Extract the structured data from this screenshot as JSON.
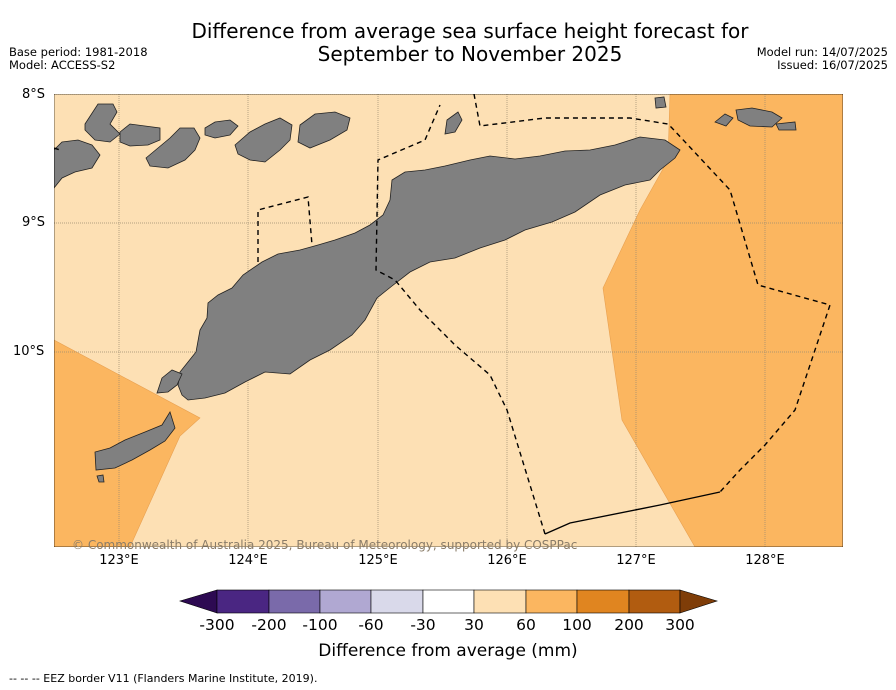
{
  "header": {
    "title_line1": "Difference from average sea surface height forecast for",
    "title_line2": "September to November 2025",
    "base_period": "Base period: 1981-2018",
    "model": "Model: ACCESS-S2",
    "model_run": "Model run: 14/07/2025",
    "issued": "Issued: 16/07/2025"
  },
  "map": {
    "lat_labels": [
      "8°S",
      "9°S",
      "10°S"
    ],
    "lon_labels": [
      "123°E",
      "124°E",
      "125°E",
      "126°E",
      "127°E",
      "128°E"
    ],
    "copyright": "© Commonwealth of Australia 2025, Bureau of Meteorology, supported by COSPPac",
    "colors": {
      "land": "#808080",
      "anomaly_30_60": "#fde0b4",
      "anomaly_60_100": "#fbb660",
      "eez_border": "#000000"
    }
  },
  "colorbar": {
    "ticks": [
      "-300",
      "-200",
      "-100",
      "-60",
      "-30",
      "30",
      "60",
      "100",
      "200",
      "300"
    ],
    "colors": [
      "#4a2682",
      "#7a6aaa",
      "#b0a8d2",
      "#d9d9ea",
      "#ffffff",
      "#fde0b4",
      "#fbb660",
      "#e08520",
      "#b15c10"
    ],
    "extend_low": "#2d0a52",
    "extend_high": "#7f3d08",
    "title": "Difference from average (mm)"
  },
  "footnote": "-- -- -- EEZ border V11 (Flanders Marine Institute, 2019)."
}
